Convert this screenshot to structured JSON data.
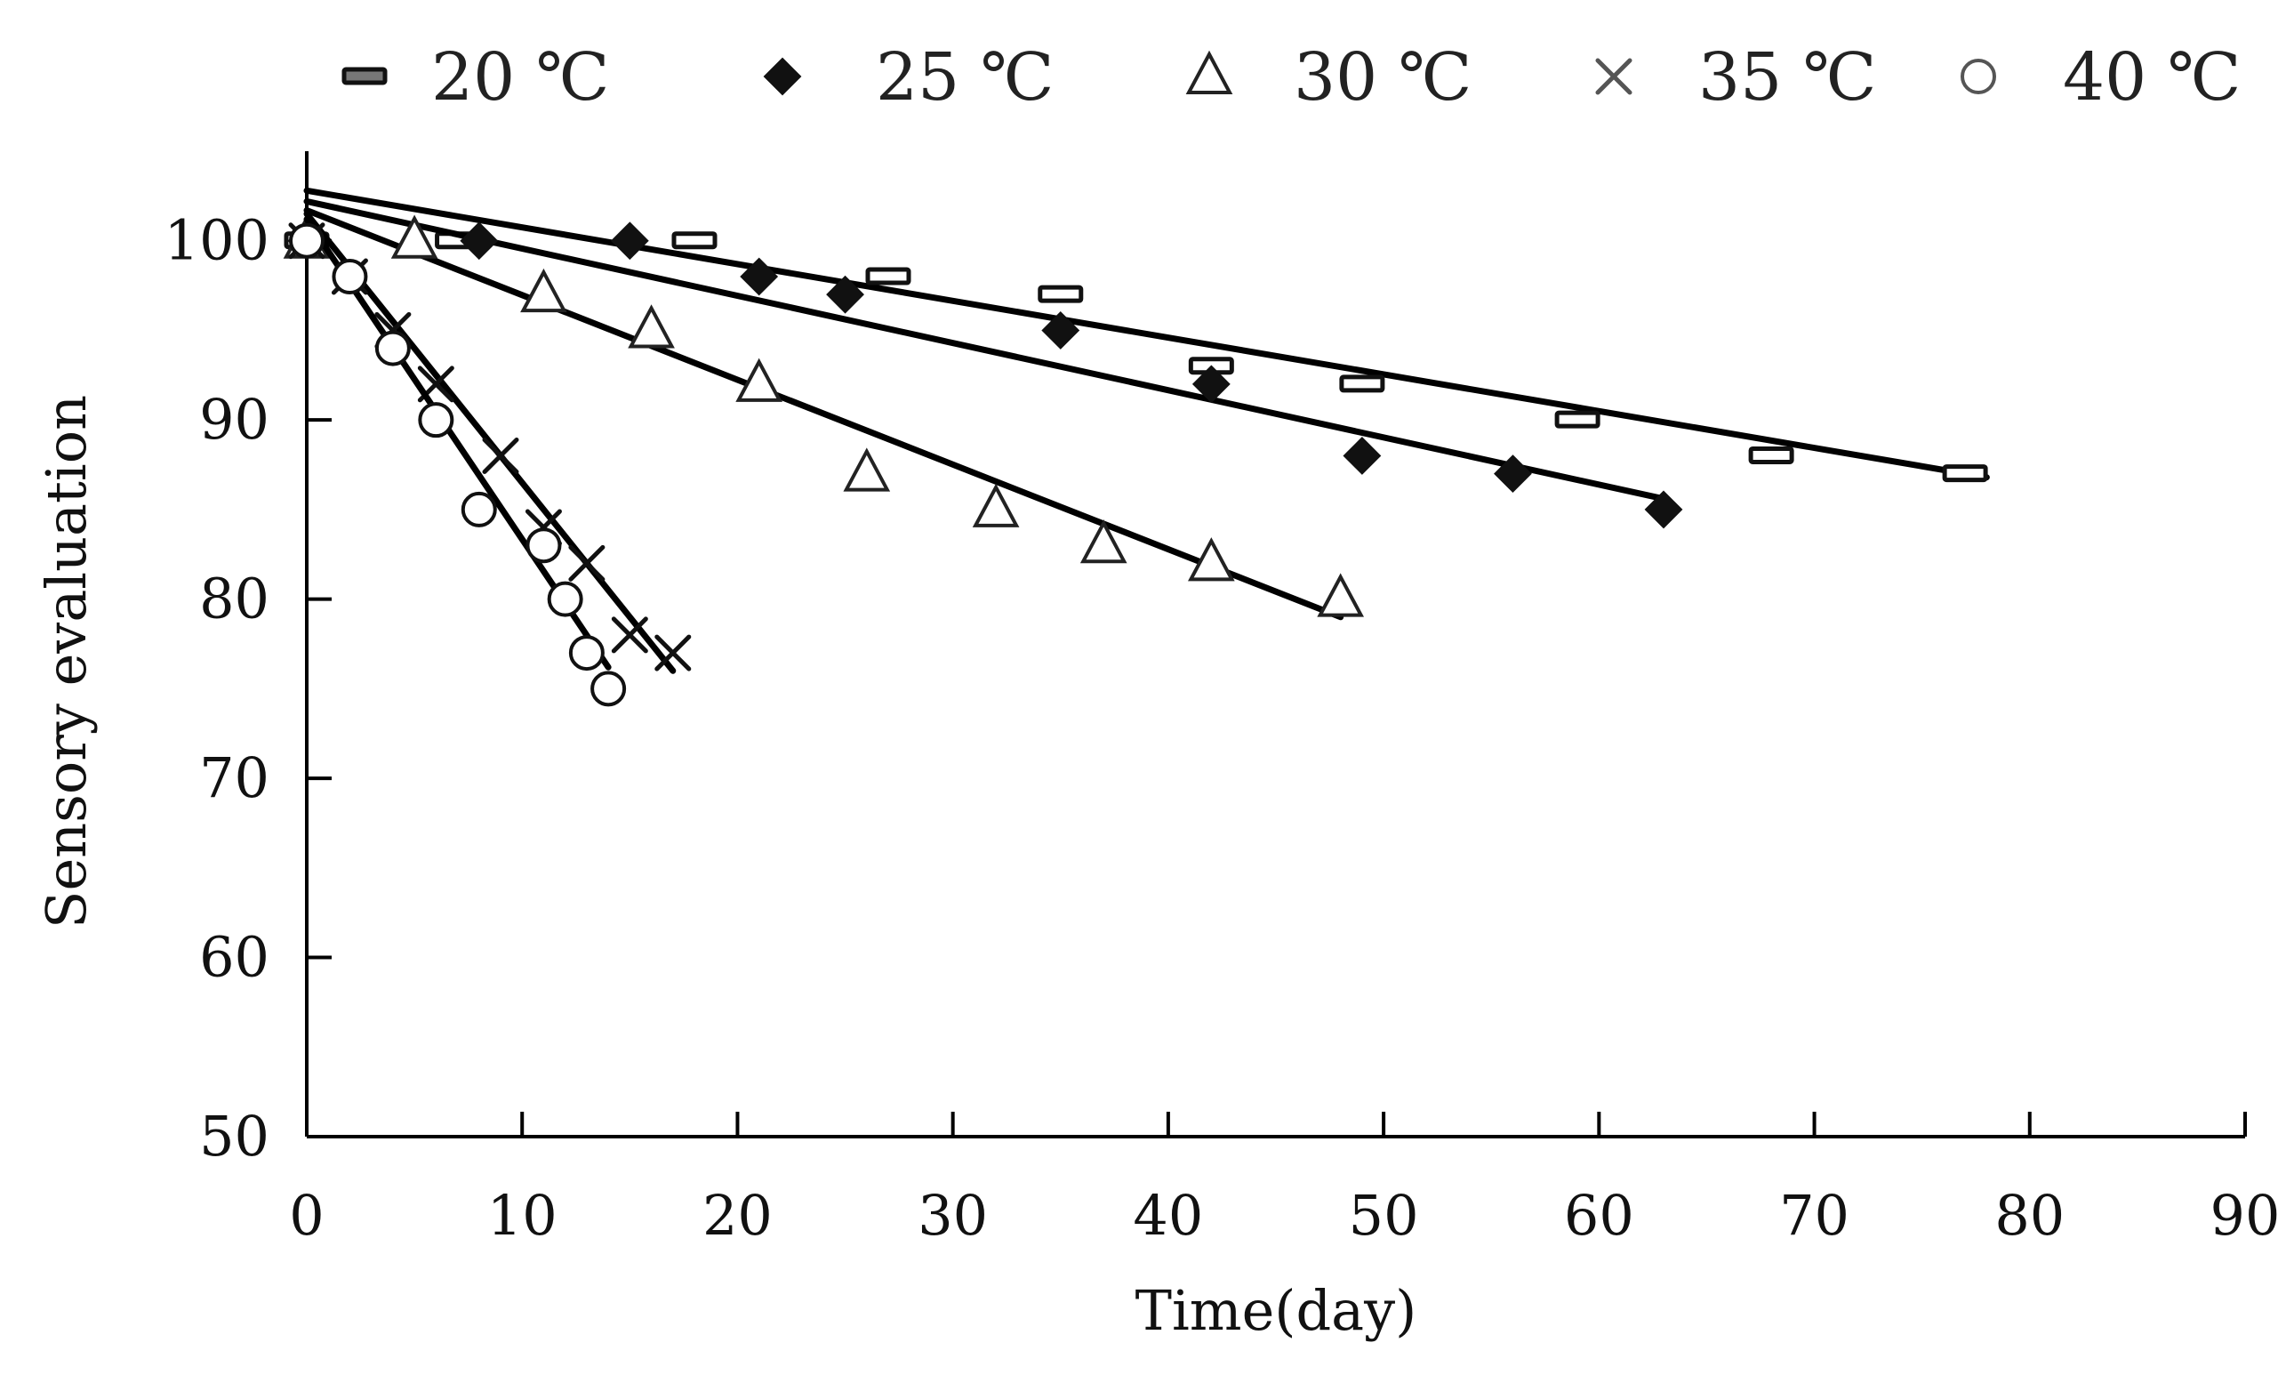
{
  "chart_data": {
    "type": "scatter",
    "title": "",
    "xlabel": "Time(day)",
    "ylabel": "Sensory evaluation",
    "xlim": [
      0,
      90
    ],
    "ylim": [
      50,
      105
    ],
    "xticks": [
      0,
      10,
      20,
      30,
      40,
      50,
      60,
      70,
      80,
      90
    ],
    "yticks": [
      50,
      60,
      70,
      80,
      90,
      100
    ],
    "xtick_labels": [
      "0",
      "10",
      "20",
      "30",
      "40",
      "50",
      "60",
      "70",
      "80",
      "90"
    ],
    "ytick_labels": [
      "50",
      "60",
      "70",
      "80",
      "90",
      "100"
    ],
    "legend_position": "top",
    "series": [
      {
        "name": "20 ℃",
        "marker": "dash",
        "points": [
          {
            "x": 0,
            "y": 100
          },
          {
            "x": 7,
            "y": 100
          },
          {
            "x": 18,
            "y": 100
          },
          {
            "x": 27,
            "y": 98
          },
          {
            "x": 35,
            "y": 97
          },
          {
            "x": 42,
            "y": 93
          },
          {
            "x": 49,
            "y": 92
          },
          {
            "x": 59,
            "y": 90
          },
          {
            "x": 68,
            "y": 88
          },
          {
            "x": 77,
            "y": 87
          }
        ],
        "trend": {
          "x0": 0,
          "y0": 102.8,
          "x1": 78,
          "y1": 86.8
        }
      },
      {
        "name": "25 ℃",
        "marker": "diamond",
        "points": [
          {
            "x": 0,
            "y": 100
          },
          {
            "x": 8,
            "y": 100
          },
          {
            "x": 15,
            "y": 100
          },
          {
            "x": 21,
            "y": 98
          },
          {
            "x": 25,
            "y": 97
          },
          {
            "x": 35,
            "y": 95
          },
          {
            "x": 42,
            "y": 92
          },
          {
            "x": 49,
            "y": 88
          },
          {
            "x": 56,
            "y": 87
          },
          {
            "x": 63,
            "y": 85
          }
        ],
        "trend": {
          "x0": 0,
          "y0": 102.2,
          "x1": 63,
          "y1": 85.6
        }
      },
      {
        "name": "30 ℃",
        "marker": "triangle",
        "points": [
          {
            "x": 0,
            "y": 100
          },
          {
            "x": 5,
            "y": 100
          },
          {
            "x": 11,
            "y": 97
          },
          {
            "x": 16,
            "y": 95
          },
          {
            "x": 21,
            "y": 92
          },
          {
            "x": 26,
            "y": 87
          },
          {
            "x": 32,
            "y": 85
          },
          {
            "x": 37,
            "y": 83
          },
          {
            "x": 42,
            "y": 82
          },
          {
            "x": 48,
            "y": 80
          }
        ],
        "trend": {
          "x0": 0,
          "y0": 101.7,
          "x1": 48,
          "y1": 79.0
        }
      },
      {
        "name": "35 ℃",
        "marker": "x",
        "points": [
          {
            "x": 0,
            "y": 100
          },
          {
            "x": 2,
            "y": 98
          },
          {
            "x": 4,
            "y": 95
          },
          {
            "x": 6,
            "y": 92
          },
          {
            "x": 9,
            "y": 88
          },
          {
            "x": 11,
            "y": 84
          },
          {
            "x": 13,
            "y": 82
          },
          {
            "x": 15,
            "y": 78
          },
          {
            "x": 17,
            "y": 77
          }
        ],
        "trend": {
          "x0": 0,
          "y0": 101.5,
          "x1": 17,
          "y1": 76.0
        }
      },
      {
        "name": "40 ℃",
        "marker": "circle",
        "points": [
          {
            "x": 0,
            "y": 100
          },
          {
            "x": 2,
            "y": 98
          },
          {
            "x": 4,
            "y": 94
          },
          {
            "x": 6,
            "y": 90
          },
          {
            "x": 8,
            "y": 85
          },
          {
            "x": 11,
            "y": 83
          },
          {
            "x": 12,
            "y": 80
          },
          {
            "x": 13,
            "y": 77
          },
          {
            "x": 14,
            "y": 75
          }
        ],
        "trend": {
          "x0": 0,
          "y0": 101.2,
          "x1": 14,
          "y1": 76.2
        }
      }
    ]
  }
}
